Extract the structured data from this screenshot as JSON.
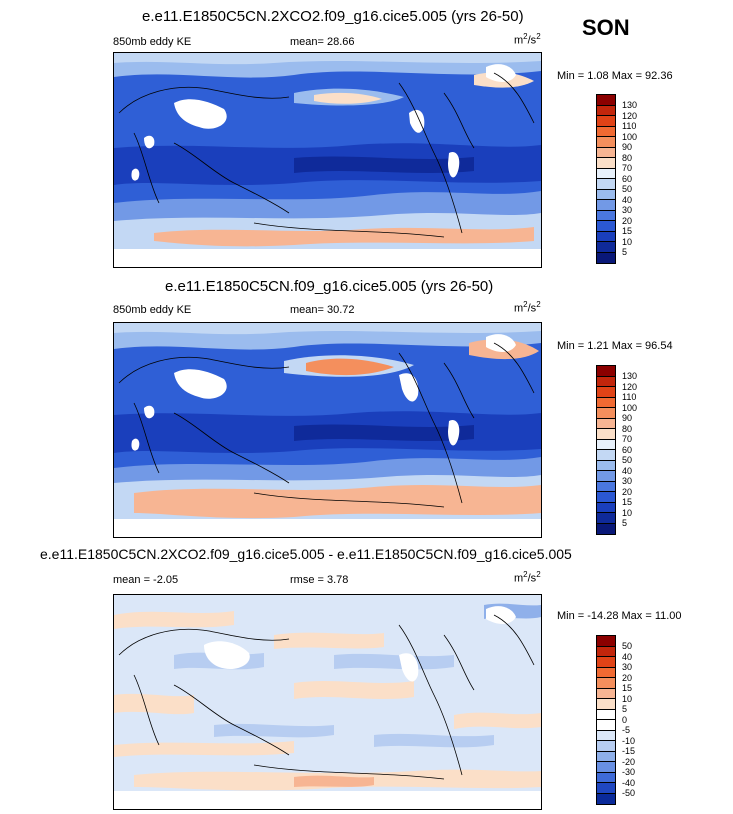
{
  "season": "SON",
  "panels": [
    {
      "title": "e.e11.E1850C5CN.2XCO2.f09_g16.cice5.005 (yrs 26-50)",
      "left_label": "850mb eddy KE",
      "stat_label": "mean=  28.66",
      "units": "m",
      "units_sup1": "2",
      "units_mid": "/s",
      "units_sup2": "2",
      "minmax": "Min =  1.08 Max = 92.36",
      "colorbar": {
        "levels": [
          "130",
          "120",
          "110",
          "100",
          "90",
          "80",
          "70",
          "60",
          "50",
          "40",
          "30",
          "20",
          "15",
          "10",
          "5"
        ],
        "colors": [
          "#8b0000",
          "#c2260c",
          "#e04317",
          "#f06a33",
          "#f48f5d",
          "#f7b593",
          "#fbdfc8",
          "#e8f1fb",
          "#c3d8f4",
          "#9bbcee",
          "#7299e6",
          "#4a77df",
          "#2b58d3",
          "#1a3fbc",
          "#0f2a9a",
          "#091878"
        ]
      }
    },
    {
      "title": "e.e11.E1850C5CN.f09_g16.cice5.005 (yrs 26-50)",
      "left_label": "850mb eddy KE",
      "stat_label": "mean=  30.72",
      "units": "m",
      "units_sup1": "2",
      "units_mid": "/s",
      "units_sup2": "2",
      "minmax": "Min =  1.21 Max = 96.54",
      "colorbar": {
        "levels": [
          "130",
          "120",
          "110",
          "100",
          "90",
          "80",
          "70",
          "60",
          "50",
          "40",
          "30",
          "20",
          "15",
          "10",
          "5"
        ],
        "colors": [
          "#8b0000",
          "#c2260c",
          "#e04317",
          "#f06a33",
          "#f48f5d",
          "#f7b593",
          "#fbdfc8",
          "#e8f1fb",
          "#c3d8f4",
          "#9bbcee",
          "#7299e6",
          "#4a77df",
          "#2b58d3",
          "#1a3fbc",
          "#0f2a9a",
          "#091878"
        ]
      }
    },
    {
      "title": "e.e11.E1850C5CN.2XCO2.f09_g16.cice5.005 - e.e11.E1850C5CN.f09_g16.cice5.005",
      "left_label": "mean =  -2.05",
      "stat_label": "rmse =   3.78",
      "units": "m",
      "units_sup1": "2",
      "units_mid": "/s",
      "units_sup2": "2",
      "minmax": "Min = -14.28 Max = 11.00",
      "colorbar": {
        "levels": [
          "50",
          "40",
          "30",
          "20",
          "15",
          "10",
          "5",
          "0",
          "-5",
          "-10",
          "-15",
          "-20",
          "-30",
          "-40",
          "-50"
        ],
        "colors": [
          "#8b0000",
          "#c2260c",
          "#e04317",
          "#f06a33",
          "#f48f5d",
          "#f7b593",
          "#fbdfc8",
          "#ffffff",
          "#ffffff",
          "#dbe7f8",
          "#b7cdf1",
          "#8fb0ea",
          "#6990e3",
          "#3f6bd8",
          "#1f47c1",
          "#0a2a9a"
        ]
      }
    }
  ]
}
